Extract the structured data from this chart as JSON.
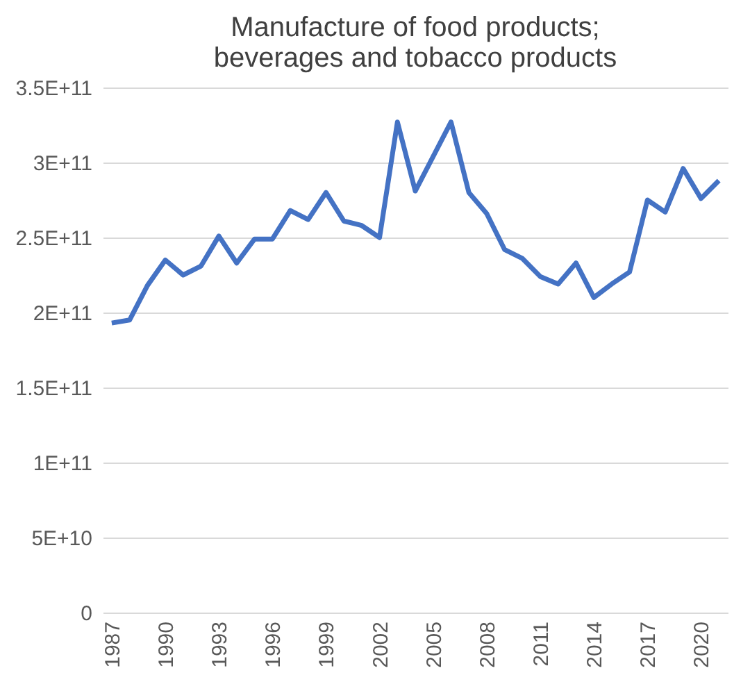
{
  "chart_data": {
    "type": "line",
    "title": "Manufacture of food products;\nbeverages and tobacco products",
    "categories": [
      "1987",
      null,
      null,
      "1990",
      null,
      null,
      "1993",
      null,
      null,
      "1996",
      null,
      null,
      "1999",
      null,
      null,
      "2002",
      null,
      null,
      "2005",
      null,
      null,
      "2008",
      null,
      null,
      "2011",
      null,
      null,
      "2014",
      null,
      null,
      "2017",
      null,
      null,
      "2020",
      null
    ],
    "series": [
      {
        "color": "#4472c4",
        "values": [
          193000000000.0,
          195000000000.0,
          218000000000.0,
          235000000000.0,
          225000000000.0,
          231000000000.0,
          251000000000.0,
          233000000000.0,
          249000000000.0,
          249000000000.0,
          268000000000.0,
          262000000000.0,
          280000000000.0,
          261000000000.0,
          258000000000.0,
          250000000000.0,
          327000000000.0,
          281000000000.0,
          304000000000.0,
          327000000000.0,
          280000000000.0,
          266000000000.0,
          242000000000.0,
          236000000000.0,
          224000000000.0,
          219000000000.0,
          233000000000.0,
          210000000000.0,
          219000000000.0,
          227000000000.0,
          275000000000.0,
          267000000000.0,
          296000000000.0,
          276000000000.0,
          288000000000.0
        ]
      }
    ],
    "ylim": [
      0,
      350000000000.0
    ],
    "yticks": [
      0,
      {
        "value": 50000000000.0,
        "label": "5E+10"
      },
      {
        "value": 100000000000.0,
        "label": "1E+11"
      },
      {
        "value": 150000000000.0,
        "label": "1.5E+11"
      },
      {
        "value": 200000000000.0,
        "label": "2E+11"
      },
      {
        "value": 250000000000.0,
        "label": "2.5E+11"
      },
      {
        "value": 300000000000.0,
        "label": "3E+11"
      },
      {
        "value": 350000000000.0,
        "label": "3.5E+11"
      }
    ],
    "grid": "y",
    "legend": false,
    "marker": "none",
    "line_style": "solid"
  }
}
